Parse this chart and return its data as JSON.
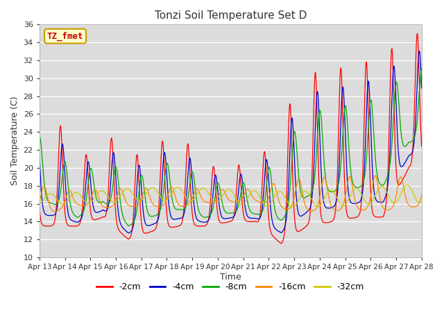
{
  "title": "Tonzi Soil Temperature Set D",
  "ylabel": "Soil Temperature (C)",
  "xlabel": "Time",
  "ylim": [
    10,
    36
  ],
  "yticks": [
    10,
    12,
    14,
    16,
    18,
    20,
    22,
    24,
    26,
    28,
    30,
    32,
    34,
    36
  ],
  "label_box_text": "TZ_fmet",
  "label_box_color": "#ffffcc",
  "label_box_border": "#cc9900",
  "label_text_color": "#cc0000",
  "bg_color": "#dcdcdc",
  "series": [
    {
      "label": "-2cm",
      "color": "#ff0000"
    },
    {
      "label": "-4cm",
      "color": "#0000cc"
    },
    {
      "label": "-8cm",
      "color": "#00aa00"
    },
    {
      "label": "-16cm",
      "color": "#ff8800"
    },
    {
      "label": "-32cm",
      "color": "#cccc00"
    }
  ],
  "x_tick_labels": [
    "Apr 13",
    "Apr 14",
    "Apr 15",
    "Apr 16",
    "Apr 17",
    "Apr 18",
    "Apr 19",
    "Apr 20",
    "Apr 21",
    "Apr 22",
    "Apr 23",
    "Apr 24",
    "Apr 25",
    "Apr 26",
    "Apr 27",
    "Apr 28"
  ],
  "n_days": 15,
  "pts_per_day": 96
}
